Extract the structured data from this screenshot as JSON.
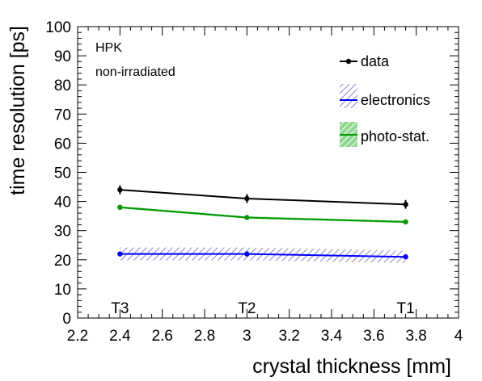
{
  "chart_data": {
    "type": "line",
    "xlabel": "crystal thickness [mm]",
    "ylabel": "time resolution [ps]",
    "xlim": [
      2.2,
      4.0
    ],
    "ylim": [
      0,
      100
    ],
    "x_ticks": [
      "2.2",
      "2.4",
      "2.6",
      "2.8",
      "3",
      "3.2",
      "3.4",
      "3.6",
      "3.8",
      "4"
    ],
    "y_ticks": [
      "0",
      "10",
      "20",
      "30",
      "40",
      "50",
      "60",
      "70",
      "80",
      "90",
      "100"
    ],
    "annotations": [
      "HPK",
      "non-irradiated"
    ],
    "point_labels": [
      {
        "text": "T3",
        "x": 2.4
      },
      {
        "text": "T2",
        "x": 3.0
      },
      {
        "text": "T1",
        "x": 3.75
      }
    ],
    "legend_position": "top-right",
    "grid": false,
    "series": [
      {
        "name": "data",
        "color": "#000000",
        "x": [
          2.4,
          3.0,
          3.75
        ],
        "values": [
          44,
          41,
          39
        ],
        "errors": [
          1.5,
          1.5,
          1.5
        ]
      },
      {
        "name": "electronics",
        "color": "#0000ff",
        "x": [
          2.4,
          3.0,
          3.75
        ],
        "values": [
          22,
          22,
          21
        ],
        "band": [
          [
            19.8,
            24.2
          ],
          [
            19.8,
            24.2
          ],
          [
            18.9,
            23.1
          ]
        ]
      },
      {
        "name": "photo-stat.",
        "color": "#009900",
        "x": [
          2.4,
          3.0,
          3.75
        ],
        "values": [
          38,
          34.5,
          33
        ],
        "band": [
          [
            37.6,
            38.4
          ],
          [
            34.1,
            34.9
          ],
          [
            32.6,
            33.4
          ]
        ]
      }
    ]
  }
}
